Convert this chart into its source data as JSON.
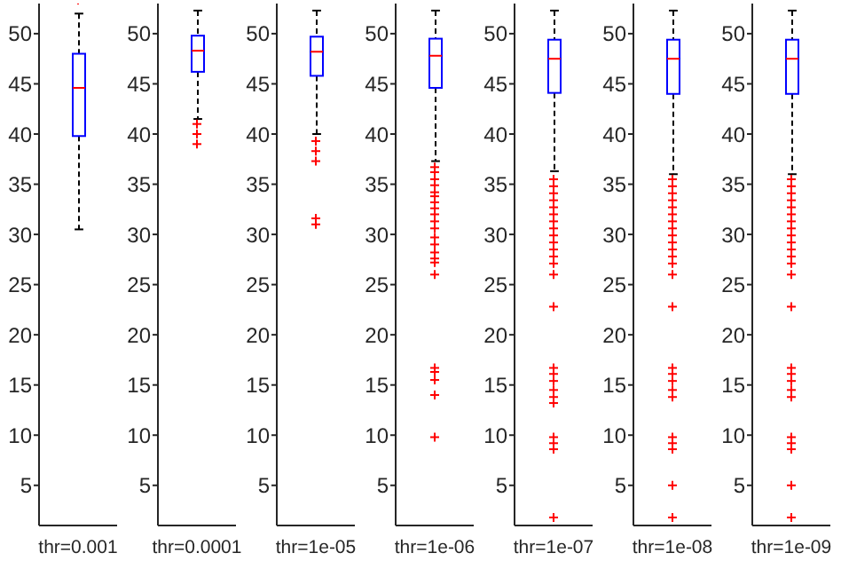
{
  "chart_data": [
    {
      "type": "box",
      "categories": [
        "thr=0.001"
      ],
      "color": "#0000ff",
      "marker": "cross",
      "ylim": [
        1,
        53
      ],
      "yticks": [
        5,
        10,
        15,
        20,
        25,
        30,
        35,
        40,
        45,
        50
      ],
      "boxes": [
        {
          "low": 30.5,
          "q1": 39.8,
          "median": 44.6,
          "q3": 48,
          "high": 52
        }
      ]
    },
    {
      "type": "box",
      "categories": [
        "thr=0.0001"
      ],
      "color": "#0000ff",
      "marker": "cross",
      "ylim": [
        1,
        53
      ],
      "yticks": [
        5,
        10,
        15,
        20,
        25,
        30,
        35,
        40,
        45,
        50
      ],
      "boxes": [
        {
          "low": 41.5,
          "q1": 46.2,
          "median": 48.3,
          "q3": 49.8,
          "high": 52.3,
          "outliers": [
            41,
            40,
            39
          ]
        }
      ]
    },
    {
      "type": "box",
      "categories": [
        "thr=1e-05"
      ],
      "color": "#0000ff",
      "marker": "cross",
      "ylim": [
        1,
        53
      ],
      "yticks": [
        5,
        10,
        15,
        20,
        25,
        30,
        35,
        40,
        45,
        50
      ],
      "boxes": [
        {
          "low": 40,
          "q1": 45.8,
          "median": 48.2,
          "q3": 49.7,
          "high": 52.3,
          "outliers": [
            39.3,
            38.3,
            37.3,
            31.6,
            31
          ]
        }
      ]
    },
    {
      "type": "box",
      "categories": [
        "thr=1e-06"
      ],
      "color": "#0000ff",
      "marker": "cross",
      "ylim": [
        1,
        53
      ],
      "yticks": [
        5,
        10,
        15,
        20,
        25,
        30,
        35,
        40,
        45,
        50
      ],
      "boxes": [
        {
          "low": 37.3,
          "q1": 44.6,
          "median": 47.8,
          "q3": 49.5,
          "high": 52.3,
          "outliers": [
            36.7,
            36.2,
            35.5,
            34.9,
            34.2,
            33.8,
            33.2,
            32.6,
            32,
            31.3,
            30.6,
            29.7,
            29,
            28.2,
            27.6,
            27.2,
            26,
            16.7,
            16.3,
            15.5,
            14,
            9.8
          ]
        }
      ]
    },
    {
      "type": "box",
      "categories": [
        "thr=1e-07"
      ],
      "color": "#0000ff",
      "marker": "cross",
      "ylim": [
        1,
        53
      ],
      "yticks": [
        5,
        10,
        15,
        20,
        25,
        30,
        35,
        40,
        45,
        50
      ],
      "boxes": [
        {
          "low": 36.3,
          "q1": 44.1,
          "median": 47.5,
          "q3": 49.4,
          "high": 52.3,
          "outliers": [
            35.5,
            34.8,
            34.1,
            33.4,
            32.7,
            32,
            31.3,
            30.6,
            29.9,
            29.2,
            28.5,
            27.8,
            27.1,
            26,
            22.8,
            16.7,
            16.1,
            15.4,
            14.5,
            13.8,
            13.2,
            9.8,
            9.2,
            8.6,
            1.8
          ]
        }
      ]
    },
    {
      "type": "box",
      "categories": [
        "thr=1e-08"
      ],
      "color": "#0000ff",
      "marker": "cross",
      "ylim": [
        1,
        53
      ],
      "yticks": [
        5,
        10,
        15,
        20,
        25,
        30,
        35,
        40,
        45,
        50
      ],
      "boxes": [
        {
          "low": 36,
          "q1": 44,
          "median": 47.5,
          "q3": 49.4,
          "high": 52.3,
          "outliers": [
            35.5,
            34.8,
            34.1,
            33.4,
            32.7,
            32,
            31.3,
            30.6,
            29.9,
            29.2,
            28.5,
            27.8,
            27.1,
            26,
            22.8,
            16.7,
            16.1,
            15.4,
            14.5,
            13.8,
            9.8,
            9.2,
            8.6,
            5,
            1.8
          ]
        }
      ]
    },
    {
      "type": "box",
      "categories": [
        "thr=1e-09"
      ],
      "color": "#0000ff",
      "marker": "cross",
      "ylim": [
        1,
        53
      ],
      "yticks": [
        5,
        10,
        15,
        20,
        25,
        30,
        35,
        40,
        45,
        50
      ],
      "boxes": [
        {
          "low": 36,
          "q1": 44,
          "median": 47.5,
          "q3": 49.4,
          "high": 52.3,
          "outliers": [
            35.5,
            34.8,
            34.1,
            33.4,
            32.7,
            32,
            31.3,
            30.6,
            29.9,
            29.2,
            28.5,
            27.8,
            27.1,
            26,
            22.8,
            16.7,
            16.1,
            15.4,
            14.5,
            13.8,
            9.8,
            9.2,
            8.6,
            5,
            1.8
          ]
        }
      ]
    }
  ]
}
